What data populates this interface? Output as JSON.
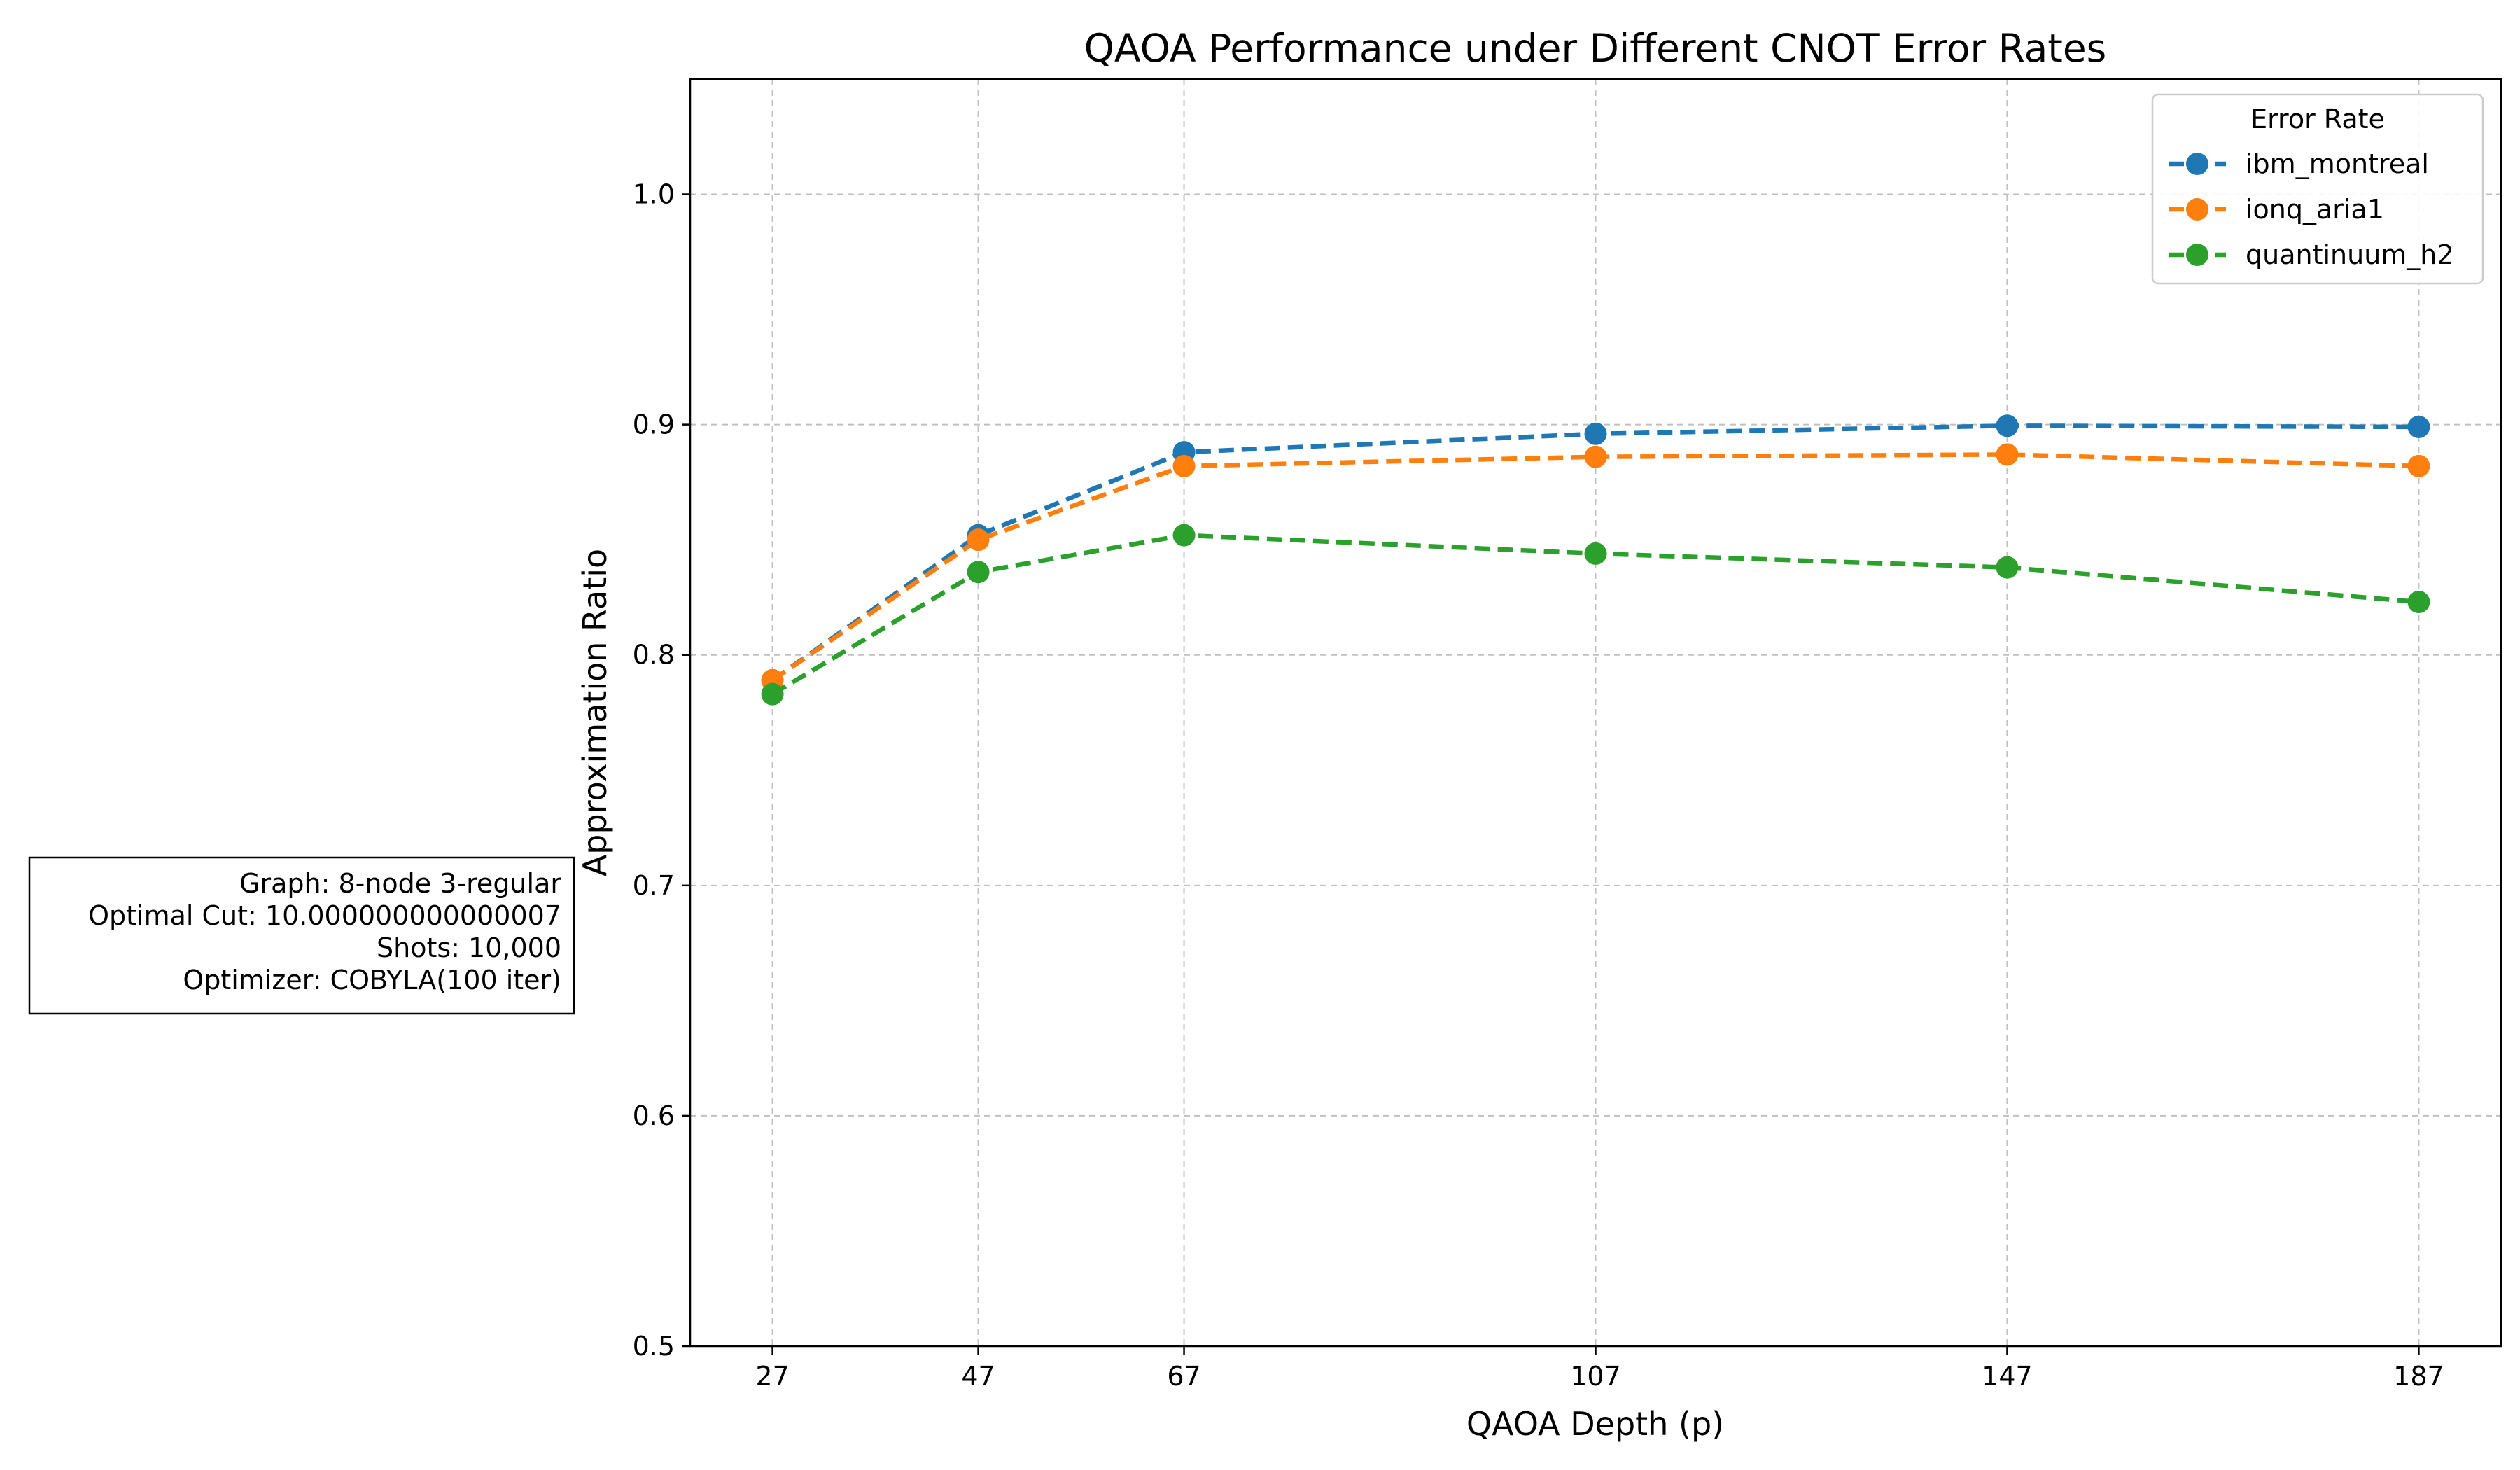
{
  "chart_data": {
    "type": "line",
    "title": "QAOA Performance under Different CNOT Error Rates",
    "xlabel": "QAOA Depth (p)",
    "ylabel": "Approximation Ratio",
    "x": [
      27,
      47,
      67,
      107,
      147,
      187
    ],
    "x_ticks": [
      "27",
      "47",
      "67",
      "107",
      "147",
      "187"
    ],
    "xlim": [
      19,
      195
    ],
    "ylim": [
      0.5,
      1.05
    ],
    "y_ticks": [
      "0.5",
      "0.6",
      "0.7",
      "0.8",
      "0.9",
      "1.0"
    ],
    "grid": true,
    "line_style": "dashed",
    "marker": "circle",
    "legend_title": "Error Rate",
    "legend_position": "top-right",
    "series": [
      {
        "name": "ibm_montreal",
        "color": "#1f77b4",
        "values": [
          0.789,
          0.852,
          0.888,
          0.896,
          0.8995,
          0.899
        ]
      },
      {
        "name": "ionq_aria1",
        "color": "#ff7f0e",
        "values": [
          0.789,
          0.85,
          0.882,
          0.886,
          0.887,
          0.882
        ]
      },
      {
        "name": "quantinuum_h2",
        "color": "#2ca02c",
        "values": [
          0.783,
          0.836,
          0.852,
          0.844,
          0.838,
          0.823
        ]
      }
    ],
    "annotation": [
      "Graph: 8-node 3-regular",
      "Optimal Cut: 10.000000000000007",
      "Shots: 10,000",
      "Optimizer: COBYLA(100 iter)"
    ]
  }
}
